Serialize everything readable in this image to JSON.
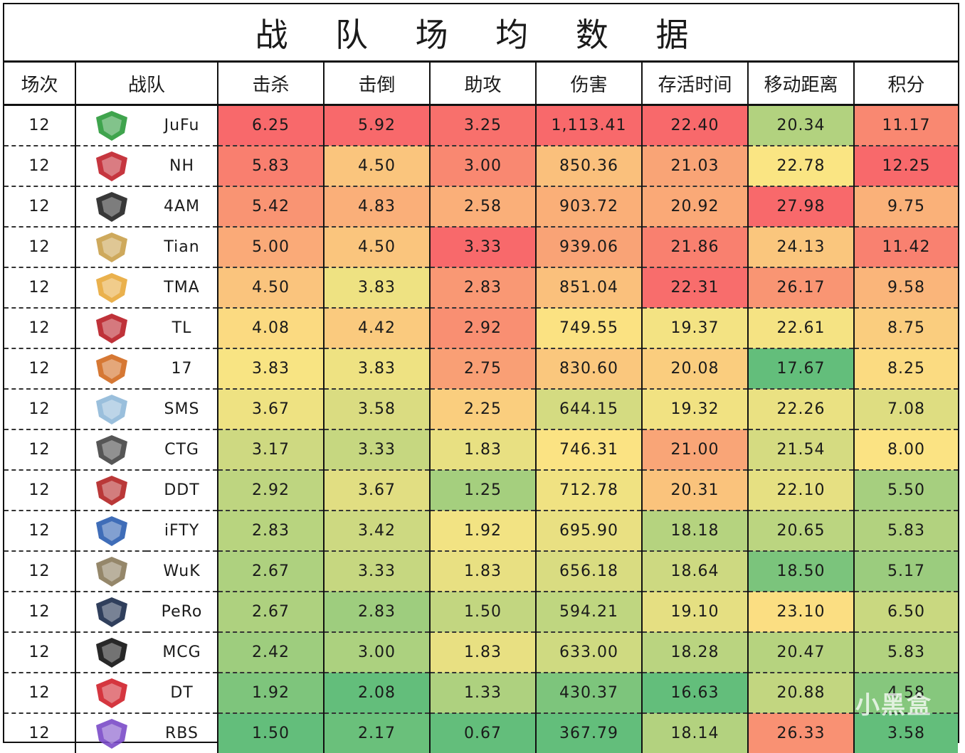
{
  "title": "战 队 场 均 数 据",
  "watermark": "小黑盒",
  "chart_data": {
    "type": "table",
    "title": "战 队 场 均 数 据",
    "columns": [
      "场次",
      "战队",
      "击杀",
      "击倒",
      "助攻",
      "伤害",
      "存活时间",
      "移动距离",
      "积分"
    ],
    "rows": [
      {
        "games": "12",
        "team": "JuFu",
        "logo": "jufu-logo-icon",
        "logo_color": "#2a9a3a",
        "kills": "6.25",
        "knocks": "5.92",
        "assists": "3.25",
        "damage": "1,113.41",
        "survival": "22.40",
        "distance": "20.34",
        "points": "11.17"
      },
      {
        "games": "12",
        "team": "NH",
        "logo": "nh-logo-icon",
        "logo_color": "#c0202a",
        "kills": "5.83",
        "knocks": "4.50",
        "assists": "3.00",
        "damage": "850.36",
        "survival": "21.03",
        "distance": "22.78",
        "points": "12.25"
      },
      {
        "games": "12",
        "team": "4AM",
        "logo": "4am-logo-icon",
        "logo_color": "#222222",
        "kills": "5.42",
        "knocks": "4.83",
        "assists": "2.58",
        "damage": "903.72",
        "survival": "20.92",
        "distance": "27.98",
        "points": "9.75"
      },
      {
        "games": "12",
        "team": "Tian",
        "logo": "tian-logo-icon",
        "logo_color": "#c9a04a",
        "kills": "5.00",
        "knocks": "4.50",
        "assists": "3.33",
        "damage": "939.06",
        "survival": "21.86",
        "distance": "24.13",
        "points": "11.42"
      },
      {
        "games": "12",
        "team": "TMA",
        "logo": "tma-logo-icon",
        "logo_color": "#e8a83a",
        "kills": "4.50",
        "knocks": "3.83",
        "assists": "2.83",
        "damage": "851.04",
        "survival": "22.31",
        "distance": "26.17",
        "points": "9.58"
      },
      {
        "games": "12",
        "team": "TL",
        "logo": "tyloo-logo-icon",
        "logo_color": "#b81c24",
        "kills": "4.08",
        "knocks": "4.42",
        "assists": "2.92",
        "damage": "749.55",
        "survival": "19.37",
        "distance": "22.61",
        "points": "8.75"
      },
      {
        "games": "12",
        "team": "17",
        "logo": "17-logo-icon",
        "logo_color": "#d2691e",
        "kills": "3.83",
        "knocks": "3.83",
        "assists": "2.75",
        "damage": "830.60",
        "survival": "20.08",
        "distance": "17.67",
        "points": "8.25"
      },
      {
        "games": "12",
        "team": "SMS",
        "logo": "sms-logo-icon",
        "logo_color": "#8fb8d8",
        "kills": "3.67",
        "knocks": "3.58",
        "assists": "2.25",
        "damage": "644.15",
        "survival": "19.32",
        "distance": "22.26",
        "points": "7.08"
      },
      {
        "games": "12",
        "team": "CTG",
        "logo": "ctg-logo-icon",
        "logo_color": "#444444",
        "kills": "3.17",
        "knocks": "3.33",
        "assists": "1.83",
        "damage": "746.31",
        "survival": "21.00",
        "distance": "21.54",
        "points": "8.00"
      },
      {
        "games": "12",
        "team": "DDT",
        "logo": "ddt-logo-icon",
        "logo_color": "#b22222",
        "kills": "2.92",
        "knocks": "3.67",
        "assists": "1.25",
        "damage": "712.78",
        "survival": "20.31",
        "distance": "22.10",
        "points": "5.50"
      },
      {
        "games": "12",
        "team": "iFTY",
        "logo": "ifty-logo-icon",
        "logo_color": "#2a5db0",
        "kills": "2.83",
        "knocks": "3.42",
        "assists": "1.92",
        "damage": "695.90",
        "survival": "18.18",
        "distance": "20.65",
        "points": "5.83"
      },
      {
        "games": "12",
        "team": "WuK",
        "logo": "wuk-logo-icon",
        "logo_color": "#8a7a5a",
        "kills": "2.67",
        "knocks": "3.33",
        "assists": "1.83",
        "damage": "656.18",
        "survival": "18.64",
        "distance": "18.50",
        "points": "5.17"
      },
      {
        "games": "12",
        "team": "PeRo",
        "logo": "pero-logo-icon",
        "logo_color": "#1a2a4a",
        "kills": "2.67",
        "knocks": "2.83",
        "assists": "1.50",
        "damage": "594.21",
        "survival": "19.10",
        "distance": "23.10",
        "points": "6.50"
      },
      {
        "games": "12",
        "team": "MCG",
        "logo": "mcg-logo-icon",
        "logo_color": "#111111",
        "kills": "2.42",
        "knocks": "3.00",
        "assists": "1.83",
        "damage": "633.00",
        "survival": "18.28",
        "distance": "20.47",
        "points": "5.83"
      },
      {
        "games": "12",
        "team": "DT",
        "logo": "dt-logo-icon",
        "logo_color": "#d0202a",
        "kills": "1.92",
        "knocks": "2.08",
        "assists": "1.33",
        "damage": "430.37",
        "survival": "16.63",
        "distance": "20.88",
        "points": "4.58"
      },
      {
        "games": "12",
        "team": "RBS",
        "logo": "rbs-logo-icon",
        "logo_color": "#7a4ac8",
        "kills": "1.50",
        "knocks": "2.17",
        "assists": "0.67",
        "damage": "367.79",
        "survival": "18.14",
        "distance": "26.33",
        "points": "3.58"
      }
    ],
    "color_scale": {
      "low": "#63be7b",
      "mid": "#fbe583",
      "high": "#f8696b"
    }
  }
}
